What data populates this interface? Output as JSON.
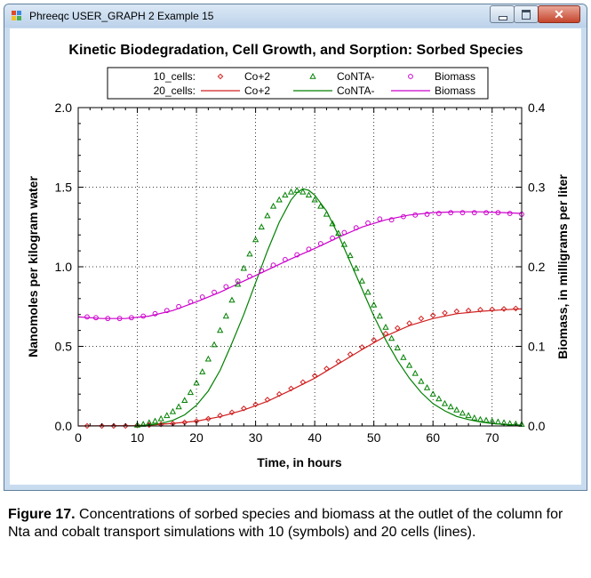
{
  "window": {
    "title": "Phreeqc USER_GRAPH 2 Example 15"
  },
  "chart_data": {
    "type": "line",
    "title": "Kinetic Biodegradation, Cell Growth, and Sorption: Sorbed Species",
    "xlabel": "Time, in hours",
    "ylabel": "Nanomoles per kilogram water",
    "y2label": "Biomass, in milligrams per liter",
    "xlim": [
      0,
      75
    ],
    "ylim": [
      0,
      2.0
    ],
    "y2lim": [
      0,
      0.4
    ],
    "xticks": [
      "0",
      "10",
      "20",
      "30",
      "40",
      "50",
      "60",
      "70"
    ],
    "yticks": [
      "0.0",
      "0.5",
      "1.0",
      "1.5",
      "2.0"
    ],
    "y2ticks": [
      "0.0",
      "0.1",
      "0.2",
      "0.3",
      "0.4"
    ],
    "grid": true,
    "legend_position": "top",
    "legend_groups": [
      "10_cells:",
      "20_cells:"
    ],
    "colors": {
      "co": "#d02020",
      "conta": "#008000",
      "biomass": "#cc00cc"
    },
    "series": [
      {
        "name": "Co+2",
        "group": "10_cells",
        "style": "symbols",
        "marker": "diamond",
        "axis": "left",
        "color": "#d02020",
        "x": [
          1.5,
          4,
          6,
          8,
          10,
          12,
          14,
          16,
          18,
          20,
          22,
          24,
          26,
          28,
          30,
          32,
          34,
          36,
          38,
          40,
          42,
          44,
          46,
          48,
          50,
          52,
          54,
          56,
          58,
          60,
          62,
          64,
          66,
          68,
          70,
          72,
          74
        ],
        "values": [
          0,
          0,
          0,
          0,
          0.004,
          0.006,
          0.01,
          0.015,
          0.022,
          0.03,
          0.045,
          0.065,
          0.085,
          0.11,
          0.135,
          0.165,
          0.2,
          0.235,
          0.275,
          0.315,
          0.36,
          0.405,
          0.45,
          0.495,
          0.54,
          0.58,
          0.615,
          0.645,
          0.675,
          0.695,
          0.71,
          0.72,
          0.725,
          0.73,
          0.732,
          0.735,
          0.738
        ]
      },
      {
        "name": "CoNTA-",
        "group": "10_cells",
        "style": "symbols",
        "marker": "triangle",
        "axis": "left",
        "color": "#008000",
        "x": [
          10,
          11,
          12,
          13,
          14,
          15,
          16,
          17,
          18,
          19,
          20,
          21,
          22,
          23,
          24,
          25,
          26,
          27,
          28,
          29,
          30,
          31,
          32,
          33,
          34,
          35,
          36,
          37,
          38,
          39,
          40,
          41,
          42,
          43,
          44,
          45,
          46,
          47,
          48,
          49,
          50,
          51,
          52,
          53,
          54,
          55,
          56,
          57,
          58,
          59,
          60,
          61,
          62,
          63,
          64,
          65,
          66,
          67,
          68,
          69,
          70,
          71,
          72,
          73,
          74,
          75
        ],
        "values": [
          0.005,
          0.01,
          0.02,
          0.03,
          0.045,
          0.065,
          0.09,
          0.12,
          0.16,
          0.21,
          0.27,
          0.34,
          0.42,
          0.51,
          0.6,
          0.69,
          0.79,
          0.89,
          0.99,
          1.08,
          1.17,
          1.25,
          1.32,
          1.38,
          1.42,
          1.45,
          1.47,
          1.48,
          1.47,
          1.45,
          1.42,
          1.38,
          1.33,
          1.27,
          1.21,
          1.14,
          1.07,
          0.99,
          0.91,
          0.84,
          0.76,
          0.69,
          0.62,
          0.55,
          0.49,
          0.43,
          0.38,
          0.33,
          0.28,
          0.24,
          0.2,
          0.17,
          0.14,
          0.12,
          0.1,
          0.08,
          0.065,
          0.05,
          0.04,
          0.035,
          0.03,
          0.025,
          0.02,
          0.015,
          0.012,
          0.01
        ]
      },
      {
        "name": "Biomass",
        "group": "10_cells",
        "style": "symbols",
        "marker": "circle",
        "axis": "right",
        "color": "#cc00cc",
        "x": [
          1.5,
          3,
          5,
          7,
          9,
          11,
          13,
          15,
          17,
          19,
          21,
          23,
          25,
          27,
          29,
          31,
          33,
          35,
          37,
          39,
          41,
          43,
          45,
          47,
          49,
          51,
          53,
          55,
          57,
          59,
          61,
          63,
          65,
          67,
          69,
          71,
          73,
          75
        ],
        "values": [
          0.137,
          0.136,
          0.135,
          0.135,
          0.136,
          0.138,
          0.141,
          0.145,
          0.15,
          0.156,
          0.162,
          0.168,
          0.175,
          0.182,
          0.188,
          0.195,
          0.202,
          0.209,
          0.215,
          0.222,
          0.229,
          0.236,
          0.243,
          0.249,
          0.255,
          0.26,
          0.259,
          0.263,
          0.265,
          0.266,
          0.267,
          0.268,
          0.268,
          0.268,
          0.268,
          0.268,
          0.267,
          0.266
        ]
      },
      {
        "name": "Co+2",
        "group": "20_cells",
        "style": "line",
        "axis": "left",
        "color": "#d02020",
        "x": [
          0,
          10,
          13,
          16,
          20,
          24,
          28,
          32,
          36,
          40,
          44,
          48,
          52,
          56,
          60,
          64,
          68,
          72,
          75
        ],
        "values": [
          0,
          0.002,
          0.008,
          0.016,
          0.03,
          0.058,
          0.1,
          0.155,
          0.225,
          0.3,
          0.39,
          0.48,
          0.565,
          0.63,
          0.675,
          0.705,
          0.72,
          0.73,
          0.735
        ]
      },
      {
        "name": "CoNTA-",
        "group": "20_cells",
        "style": "line",
        "axis": "left",
        "color": "#008000",
        "x": [
          10,
          12,
          14,
          16,
          18,
          20,
          22,
          24,
          26,
          28,
          30,
          32,
          34,
          36,
          37,
          38,
          39,
          40,
          42,
          44,
          46,
          48,
          50,
          52,
          54,
          56,
          58,
          60,
          62,
          64,
          66,
          68,
          70,
          72,
          75
        ],
        "values": [
          0.002,
          0.006,
          0.015,
          0.035,
          0.07,
          0.13,
          0.22,
          0.35,
          0.52,
          0.7,
          0.9,
          1.1,
          1.28,
          1.42,
          1.465,
          1.49,
          1.48,
          1.45,
          1.35,
          1.2,
          1.03,
          0.86,
          0.69,
          0.54,
          0.41,
          0.3,
          0.21,
          0.14,
          0.095,
          0.06,
          0.04,
          0.025,
          0.015,
          0.01,
          0.005
        ]
      },
      {
        "name": "Biomass",
        "group": "20_cells",
        "style": "line",
        "axis": "right",
        "color": "#cc00cc",
        "x": [
          0,
          4,
          8,
          12,
          16,
          20,
          24,
          28,
          32,
          36,
          40,
          44,
          48,
          52,
          56,
          60,
          64,
          68,
          72,
          75
        ],
        "values": [
          0.137,
          0.135,
          0.135,
          0.138,
          0.145,
          0.156,
          0.168,
          0.182,
          0.196,
          0.21,
          0.223,
          0.237,
          0.25,
          0.259,
          0.265,
          0.268,
          0.269,
          0.269,
          0.268,
          0.267
        ]
      }
    ]
  },
  "caption": {
    "label": "Figure 17.",
    "text": " Concentrations of sorbed species and biomass at the outlet of the column for Nta and cobalt transport simulations with 10 (symbols) and 20 cells (lines)."
  }
}
